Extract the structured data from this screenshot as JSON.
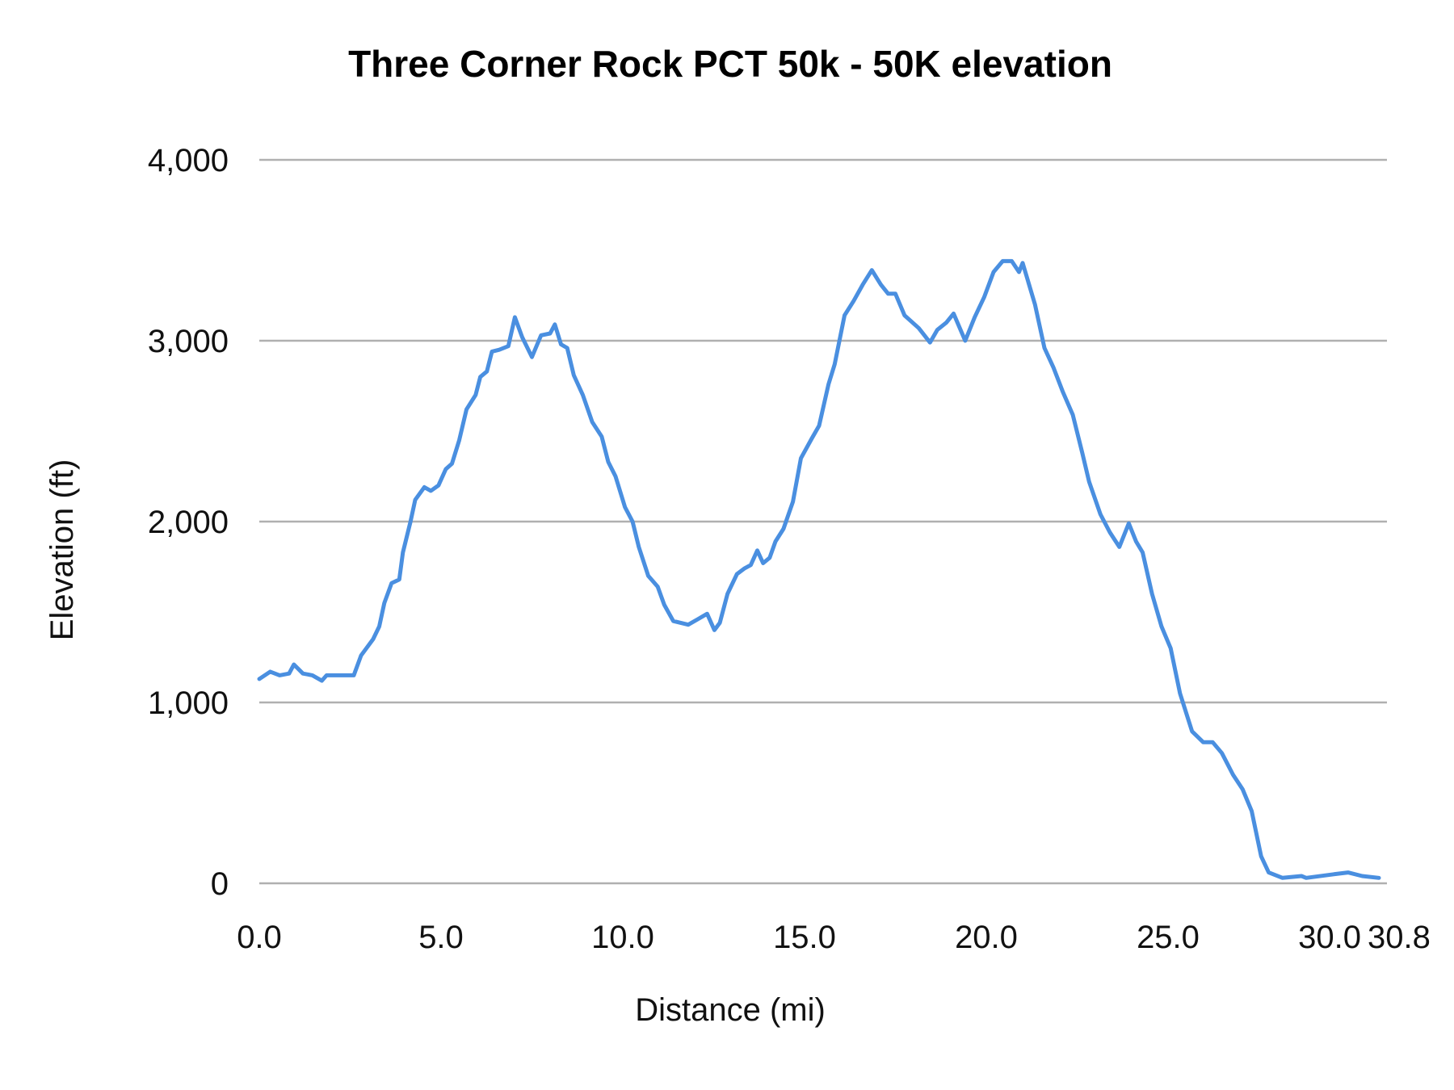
{
  "chart_data": {
    "type": "line",
    "title": "Three Corner Rock PCT 50k - 50K elevation",
    "xlabel": "Distance (mi)",
    "ylabel": "Elevation (ft)",
    "xlim": [
      0,
      30.8
    ],
    "ylim": [
      0,
      4000
    ],
    "x_ticks": [
      "0.0",
      "5.0",
      "10.0",
      "15.0",
      "20.0",
      "25.0",
      "30.0",
      "30.8"
    ],
    "x_tick_values": [
      0,
      5,
      10,
      15,
      20,
      25,
      30,
      30.8
    ],
    "y_ticks": [
      "0",
      "1,000",
      "2,000",
      "3,000",
      "4,000"
    ],
    "y_tick_values": [
      0,
      1000,
      2000,
      3000,
      4000
    ],
    "grid": "horizontal",
    "legend": "none",
    "colors": {
      "line": "#4a8fe0",
      "grid": "#b0b0b0"
    },
    "series": [
      {
        "x": [
          0,
          0.3,
          0.56,
          0.82,
          0.95,
          1.2,
          1.46,
          1.72,
          1.85,
          2.6,
          2.8,
          3.13,
          3.3,
          3.44,
          3.64,
          3.85,
          3.95,
          4.16,
          4.29,
          4.54,
          4.72,
          4.93,
          5.13,
          5.3,
          5.5,
          5.7,
          5.95,
          6.08,
          6.26,
          6.4,
          6.6,
          6.85,
          7.03,
          7.23,
          7.5,
          7.75,
          8.0,
          8.13,
          8.3,
          8.47,
          8.65,
          8.9,
          9.16,
          9.42,
          9.6,
          9.8,
          10.06,
          10.27,
          10.44,
          10.7,
          10.96,
          11.14,
          11.39,
          11.8,
          12.06,
          12.32,
          12.52,
          12.67,
          12.88,
          13.14,
          13.34,
          13.52,
          13.7,
          13.86,
          14.04,
          14.2,
          14.42,
          14.68,
          14.9,
          15.2,
          15.4,
          15.66,
          15.83,
          16.1,
          16.35,
          16.6,
          16.85,
          17.1,
          17.3,
          17.5,
          17.75,
          18.14,
          18.45,
          18.65,
          18.9,
          19.1,
          19.42,
          19.68,
          19.94,
          20.2,
          20.45,
          20.7,
          20.9,
          21.0,
          21.34,
          21.6,
          21.85,
          22.1,
          22.38,
          22.64,
          22.83,
          23.14,
          23.4,
          23.66,
          23.92,
          24.12,
          24.3,
          24.56,
          24.82,
          25.07,
          25.33,
          25.66,
          25.97,
          26.23,
          26.48,
          26.79,
          27.05,
          27.3,
          27.56,
          27.77,
          28.15,
          28.67,
          28.8,
          29.56,
          29.95,
          30.34,
          30.8
        ],
        "y": [
          1130,
          1170,
          1150,
          1160,
          1210,
          1160,
          1150,
          1120,
          1150,
          1150,
          1260,
          1350,
          1420,
          1550,
          1660,
          1680,
          1830,
          2000,
          2120,
          2190,
          2170,
          2200,
          2290,
          2320,
          2450,
          2620,
          2700,
          2800,
          2830,
          2940,
          2950,
          2970,
          3130,
          3020,
          2910,
          3030,
          3040,
          3090,
          2980,
          2960,
          2810,
          2700,
          2550,
          2470,
          2330,
          2250,
          2080,
          2000,
          1860,
          1700,
          1640,
          1540,
          1450,
          1430,
          1460,
          1490,
          1400,
          1440,
          1600,
          1710,
          1740,
          1760,
          1840,
          1770,
          1800,
          1890,
          1960,
          2110,
          2350,
          2460,
          2530,
          2760,
          2870,
          3140,
          3220,
          3310,
          3390,
          3310,
          3260,
          3260,
          3140,
          3070,
          2990,
          3060,
          3100,
          3150,
          3000,
          3130,
          3240,
          3380,
          3440,
          3440,
          3380,
          3430,
          3200,
          2960,
          2850,
          2720,
          2590,
          2380,
          2220,
          2040,
          1940,
          1860,
          1990,
          1890,
          1830,
          1600,
          1420,
          1300,
          1050,
          840,
          780,
          780,
          720,
          600,
          520,
          400,
          150,
          60,
          30,
          40,
          30,
          50,
          60,
          40,
          30
        ]
      }
    ]
  }
}
